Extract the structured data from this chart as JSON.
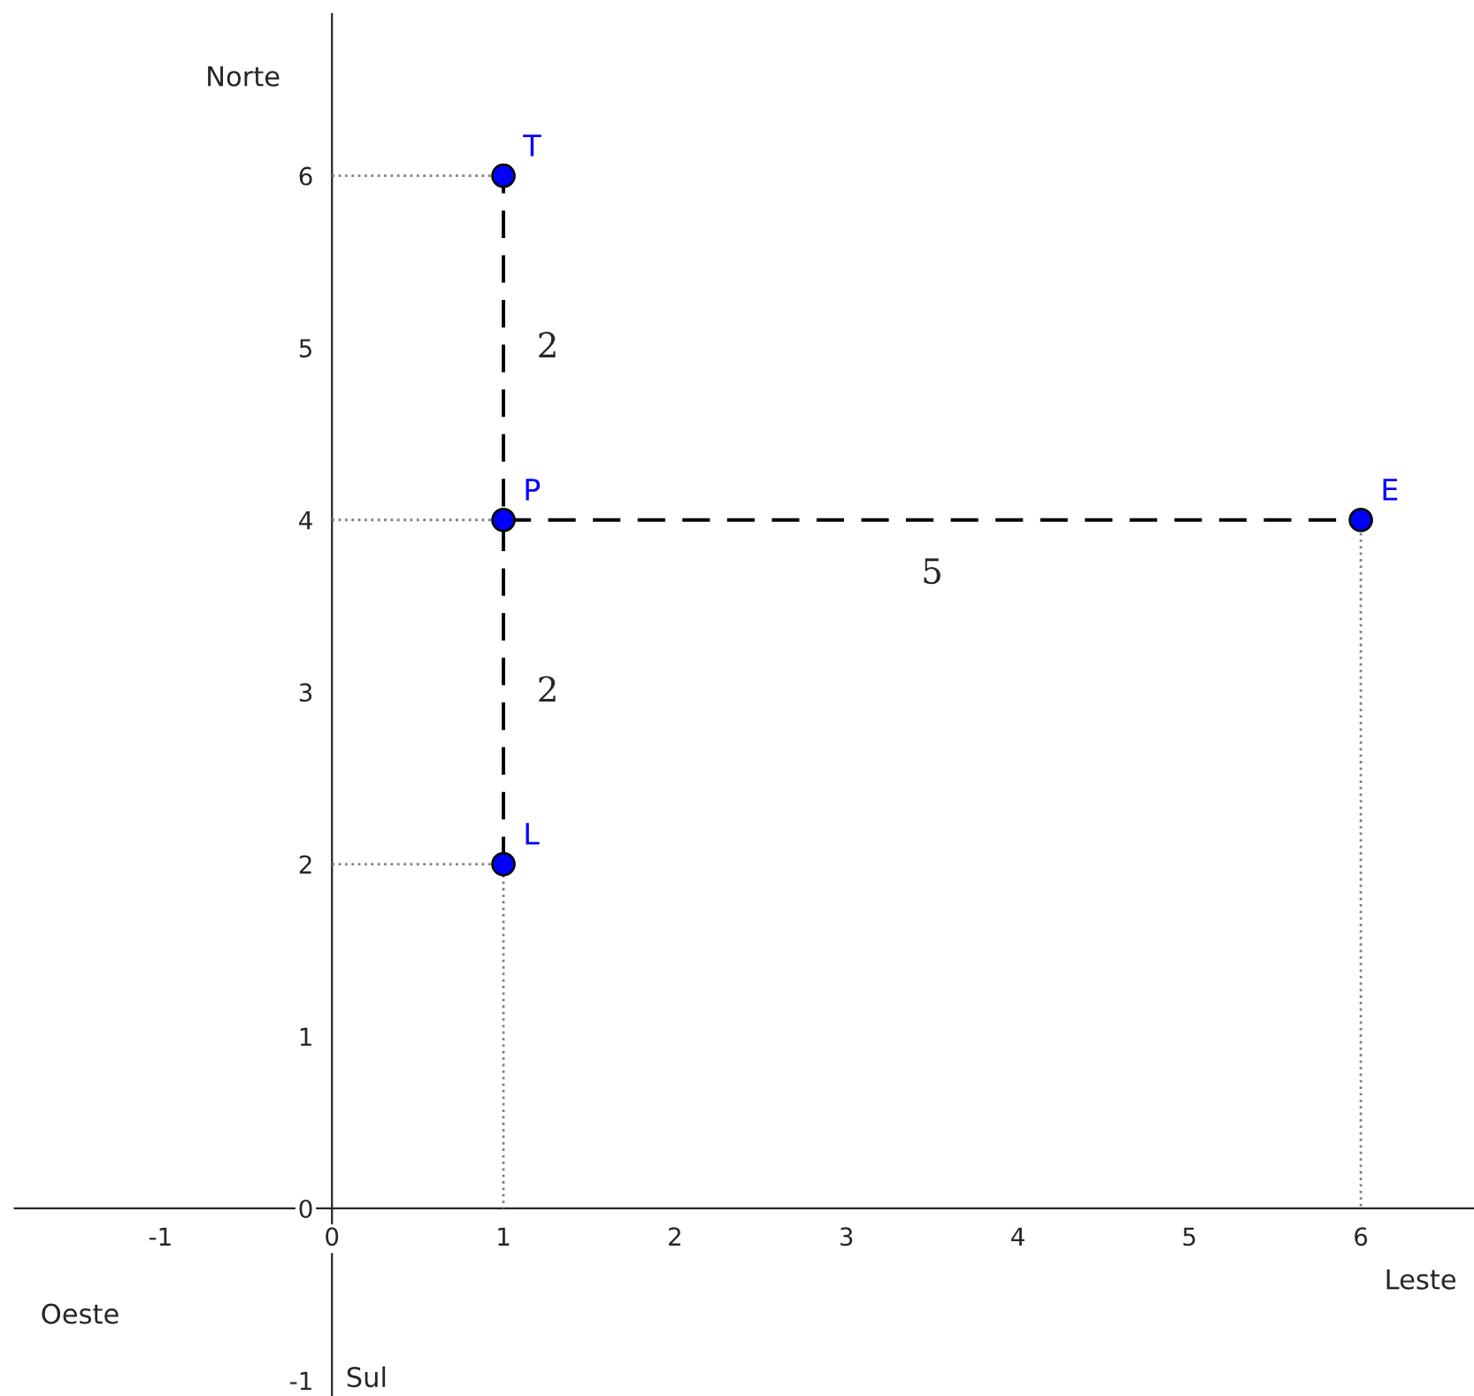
{
  "chart_data": {
    "type": "scatter",
    "xlabel": "Leste",
    "ylabel": "Norte",
    "xlim": [
      -1.85,
      6.66
    ],
    "ylim": [
      -1.09,
      6.94
    ],
    "xticks": [
      -1,
      0,
      1,
      2,
      3,
      4,
      5,
      6
    ],
    "yticks": [
      -1,
      0,
      1,
      2,
      3,
      4,
      5,
      6
    ],
    "grid": false,
    "series": [
      {
        "type": "line",
        "line_style": "dotted",
        "color": "#808080",
        "x": [
          0,
          1
        ],
        "values": [
          6,
          6
        ]
      },
      {
        "type": "line",
        "line_style": "dotted",
        "color": "#808080",
        "x": [
          0,
          1
        ],
        "values": [
          4,
          4
        ]
      },
      {
        "type": "line",
        "line_style": "dotted",
        "color": "#808080",
        "x": [
          0,
          1,
          1
        ],
        "values": [
          2,
          2,
          0
        ]
      },
      {
        "type": "line",
        "line_style": "dotted",
        "color": "#808080",
        "x": [
          6,
          6
        ],
        "values": [
          4,
          0
        ]
      },
      {
        "type": "line",
        "line_style": "dashed",
        "color": "#000000",
        "x": [
          1,
          1
        ],
        "values": [
          2,
          6
        ]
      },
      {
        "type": "line",
        "line_style": "dashed",
        "color": "#000000",
        "x": [
          1,
          6
        ],
        "values": [
          4,
          4
        ]
      },
      {
        "color": "#0000ff",
        "marker": "circle",
        "x": [
          1,
          1,
          1,
          6
        ],
        "values": [
          6,
          4,
          2,
          4
        ]
      }
    ],
    "annotations": [
      {
        "text": "T",
        "x": 1,
        "y": 6
      },
      {
        "text": "P",
        "x": 1,
        "y": 4
      },
      {
        "text": "L",
        "x": 1,
        "y": 2
      },
      {
        "text": "E",
        "x": 6,
        "y": 4
      },
      {
        "text": "2",
        "x": 1,
        "y": 5
      },
      {
        "text": "2",
        "x": 1,
        "y": 3
      },
      {
        "text": "5",
        "x": 3.5,
        "y": 4
      },
      "Oeste",
      "Sul"
    ]
  }
}
